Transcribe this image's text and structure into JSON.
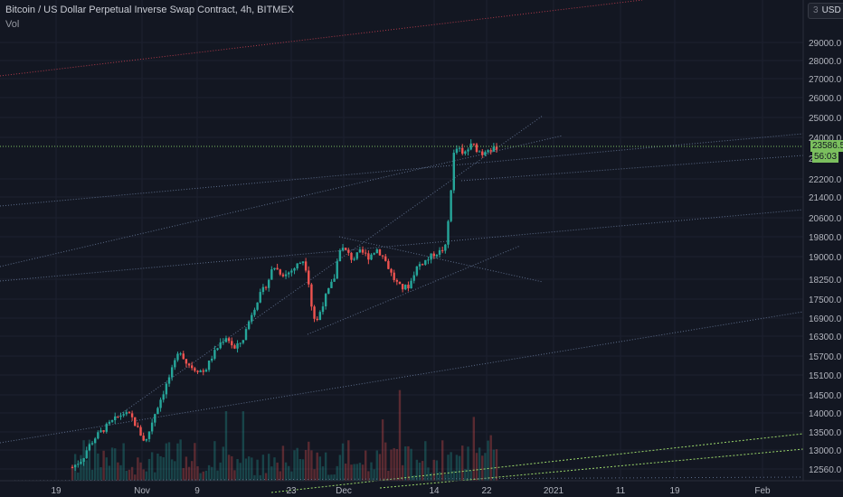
{
  "header": {
    "title": "Bitcoin / US Dollar Perpetual Inverse Swap Contract, 4h, BITMEX",
    "indicator": "Vol"
  },
  "scale_button": {
    "count": "3",
    "currency": "USD"
  },
  "price_labels": {
    "last_price": "23586.5",
    "countdown": "56:03",
    "clipped_tick": "2"
  },
  "colors": {
    "background": "#131722",
    "up": "#26a69a",
    "down": "#ef5350",
    "last_price": "#7bbf5e",
    "trendline": "#5d6d8a",
    "red_line": "#b03a4a",
    "green_dotted": "#9bd86a"
  },
  "chart_data": {
    "type": "candlestick",
    "y_ticks": [
      "29000.0",
      "28000.0",
      "27000.0",
      "26000.0",
      "25000.0",
      "24000.0",
      "22200.0",
      "21400.0",
      "20600.0",
      "19800.0",
      "19000.0",
      "18250.0",
      "17500.0",
      "16900.0",
      "16300.0",
      "15700.0",
      "15100.0",
      "14500.0",
      "14000.0",
      "13500.0",
      "13000.0",
      "12560.0"
    ],
    "x_ticks": [
      "19",
      "Nov",
      "9",
      "23",
      "Dec",
      "14",
      "22",
      "2021",
      "11",
      "19",
      "Feb"
    ],
    "price_path": [
      [
        0.2,
        12600
      ],
      [
        0.25,
        12800
      ],
      [
        0.28,
        13100
      ],
      [
        0.32,
        13400
      ],
      [
        0.38,
        13700
      ],
      [
        0.45,
        14000
      ],
      [
        0.49,
        13900
      ],
      [
        0.53,
        13500
      ],
      [
        0.56,
        13200
      ],
      [
        0.6,
        13900
      ],
      [
        0.65,
        14600
      ],
      [
        0.7,
        15400
      ],
      [
        0.73,
        15900
      ],
      [
        0.76,
        15500
      ],
      [
        0.8,
        15300
      ],
      [
        0.85,
        15200
      ],
      [
        0.89,
        15700
      ],
      [
        0.93,
        16100
      ],
      [
        0.96,
        16300
      ],
      [
        1.0,
        15900
      ],
      [
        1.04,
        16200
      ],
      [
        1.08,
        17000
      ],
      [
        1.12,
        17600
      ],
      [
        1.16,
        18100
      ],
      [
        1.19,
        18700
      ],
      [
        1.22,
        18500
      ],
      [
        1.25,
        18400
      ],
      [
        1.29,
        18600
      ],
      [
        1.32,
        18800
      ],
      [
        1.34,
        18900
      ],
      [
        1.36,
        18400
      ],
      [
        1.38,
        17200
      ],
      [
        1.4,
        16700
      ],
      [
        1.43,
        17300
      ],
      [
        1.46,
        17800
      ],
      [
        1.49,
        18300
      ],
      [
        1.52,
        19400
      ],
      [
        1.55,
        19200
      ],
      [
        1.58,
        18900
      ],
      [
        1.62,
        19200
      ],
      [
        1.66,
        19000
      ],
      [
        1.7,
        19300
      ],
      [
        1.74,
        18900
      ],
      [
        1.78,
        18300
      ],
      [
        1.82,
        17900
      ],
      [
        1.86,
        18000
      ],
      [
        1.89,
        18600
      ],
      [
        1.92,
        18800
      ],
      [
        1.95,
        18900
      ],
      [
        1.98,
        19100
      ],
      [
        2.01,
        19200
      ],
      [
        2.04,
        19400
      ],
      [
        2.06,
        21200
      ],
      [
        2.08,
        23300
      ],
      [
        2.1,
        23600
      ],
      [
        2.12,
        23200
      ],
      [
        2.14,
        23400
      ],
      [
        2.17,
        23700
      ],
      [
        2.19,
        23500
      ],
      [
        2.22,
        23300
      ],
      [
        2.25,
        23600
      ],
      [
        2.27,
        23400
      ],
      [
        2.29,
        23586.5
      ]
    ]
  }
}
